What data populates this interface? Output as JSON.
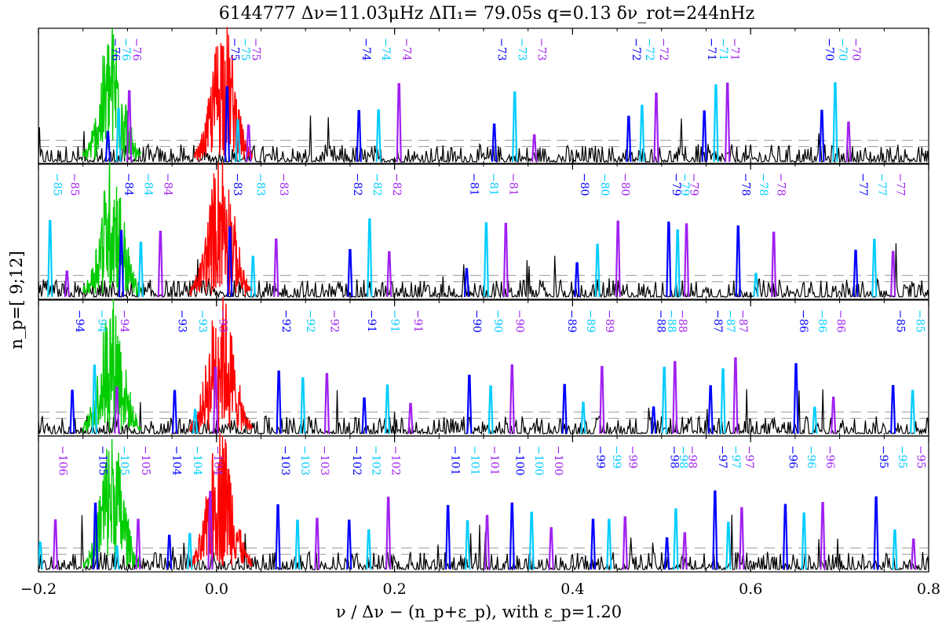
{
  "chart_data": {
    "type": "line",
    "title": "6144777 Δν=11.03μHz ΔΠ₁= 79.05s q=0.13 δν_rot=244nHz",
    "xlabel": "ν / Δν − (n_p+ε_p),  with ε_p=1.20",
    "ylabel": "n_p=[ 9;12]",
    "xlim": [
      -0.2,
      0.8
    ],
    "xticks": [
      -0.2,
      0.0,
      0.2,
      0.4,
      0.6,
      0.8
    ],
    "xtick_labels": [
      "−0.2",
      "0.0",
      "0.2",
      "0.4",
      "0.6",
      "0.8"
    ],
    "grid": false,
    "colors": {
      "spectrum": "#000000",
      "radial_mode": "#ff0000",
      "quadrupole_mode": "#00cc00",
      "m_minus": "#0000ff",
      "m_zero": "#00ccff",
      "m_plus": "#a020f0",
      "threshold": "#999999"
    },
    "panels": [
      {
        "np": 12,
        "green_band": [
          -0.15,
          -0.085
        ],
        "red_band": [
          -0.025,
          0.04
        ],
        "mixed_modes": [
          {
            "n": -76,
            "x": [
              -0.122,
              -0.11,
              -0.098
            ],
            "labels": [
              "−76",
              "−76",
              "−76"
            ]
          },
          {
            "n": -75,
            "x": [
              0.012,
              0.024,
              0.036
            ],
            "labels": [
              "−75",
              "−75",
              "−75"
            ]
          },
          {
            "n": -74,
            "x": [
              0.16,
              0.182,
              0.205
            ],
            "labels": [
              "−74",
              "−74",
              "−74"
            ]
          },
          {
            "n": -73,
            "x": [
              0.312,
              0.335,
              0.357
            ],
            "labels": [
              "−73",
              "−73",
              "−73"
            ]
          },
          {
            "n": -72,
            "x": [
              0.463,
              0.478,
              0.494
            ],
            "labels": [
              "−72",
              "−72",
              "−72"
            ]
          },
          {
            "n": -71,
            "x": [
              0.548,
              0.561,
              0.574
            ],
            "labels": [
              "−71",
              "−71",
              "−71"
            ]
          },
          {
            "n": -70,
            "x": [
              0.68,
              0.695,
              0.71
            ],
            "labels": [
              "−70",
              "−70",
              "−70"
            ]
          }
        ]
      },
      {
        "np": 11,
        "green_band": [
          -0.15,
          -0.085
        ],
        "red_band": [
          -0.03,
          0.04
        ],
        "mixed_modes": [
          {
            "n": -85,
            "x": [
              -0.205,
              -0.187,
              -0.168
            ],
            "labels": [
              "−85",
              "−85",
              "−85"
            ]
          },
          {
            "n": -84,
            "x": [
              -0.107,
              -0.085,
              -0.063
            ],
            "labels": [
              "−84",
              "−84",
              "−84"
            ]
          },
          {
            "n": -83,
            "x": [
              0.015,
              0.041,
              0.067
            ],
            "labels": [
              "−83",
              "−83",
              "−83"
            ]
          },
          {
            "n": -82,
            "x": [
              0.15,
              0.172,
              0.194
            ],
            "labels": [
              "−82",
              "−82",
              "−82"
            ]
          },
          {
            "n": -81,
            "x": [
              0.281,
              0.303,
              0.325
            ],
            "labels": [
              "−81",
              "−81",
              "−81"
            ]
          },
          {
            "n": -80,
            "x": [
              0.405,
              0.428,
              0.451
            ],
            "labels": [
              "−80",
              "−80",
              "−80"
            ]
          },
          {
            "n": -79,
            "x": [
              0.508,
              0.518,
              0.528
            ],
            "labels": [
              "−79",
              "−79",
              "−79"
            ]
          },
          {
            "n": -78,
            "x": [
              0.586,
              0.606,
              0.626
            ],
            "labels": [
              "−78",
              "−78",
              "−78"
            ]
          },
          {
            "n": -77,
            "x": [
              0.718,
              0.739,
              0.76
            ],
            "labels": [
              "−77",
              "−77",
              "−77"
            ]
          }
        ]
      },
      {
        "np": 10,
        "green_band": [
          -0.15,
          -0.085
        ],
        "red_band": [
          -0.03,
          0.04
        ],
        "mixed_modes": [
          {
            "n": -94,
            "x": [
              -0.162,
              -0.137,
              -0.112
            ],
            "labels": [
              "−94",
              "−94",
              "−94"
            ]
          },
          {
            "n": -93,
            "x": [
              -0.047,
              -0.024,
              -0.001
            ],
            "labels": [
              "−93",
              "−93",
              "−93"
            ]
          },
          {
            "n": -92,
            "x": [
              0.07,
              0.097,
              0.124
            ],
            "labels": [
              "−92",
              "−92",
              "−92"
            ]
          },
          {
            "n": -91,
            "x": [
              0.166,
              0.192,
              0.218
            ],
            "labels": [
              "−91",
              "−91",
              "−91"
            ]
          },
          {
            "n": -90,
            "x": [
              0.284,
              0.308,
              0.332
            ],
            "labels": [
              "−90",
              "−90",
              "−90"
            ]
          },
          {
            "n": -89,
            "x": [
              0.391,
              0.412,
              0.433
            ],
            "labels": [
              "−89",
              "−89",
              "−89"
            ]
          },
          {
            "n": -88,
            "x": [
              0.491,
              0.503,
              0.515
            ],
            "labels": [
              "−88",
              "−88",
              "−88"
            ]
          },
          {
            "n": -87,
            "x": [
              0.555,
              0.569,
              0.583
            ],
            "labels": [
              "−87",
              "−87",
              "−87"
            ]
          },
          {
            "n": -86,
            "x": [
              0.651,
              0.672,
              0.693
            ],
            "labels": [
              "−86",
              "−86",
              "−86"
            ]
          },
          {
            "n": -85,
            "x": [
              0.76,
              0.782,
              0.804
            ],
            "labels": [
              "−85",
              "−85",
              "−85"
            ]
          }
        ]
      },
      {
        "np": 9,
        "green_band": [
          -0.15,
          -0.085
        ],
        "red_band": [
          -0.03,
          0.04
        ],
        "mixed_modes": [
          {
            "n": -106,
            "x": [
              -0.215,
              -0.198,
              -0.181
            ],
            "labels": [
              "−106",
              "−106",
              "−106"
            ]
          },
          {
            "n": -105,
            "x": [
              -0.136,
              -0.112,
              -0.088
            ],
            "labels": [
              "−105",
              "−105",
              "−105"
            ]
          },
          {
            "n": -104,
            "x": [
              -0.053,
              -0.03,
              -0.007
            ],
            "labels": [
              "−104",
              "−104",
              "−104"
            ]
          },
          {
            "n": -103,
            "x": [
              0.069,
              0.091,
              0.113
            ],
            "labels": [
              "−103",
              "−103",
              "−103"
            ]
          },
          {
            "n": -102,
            "x": [
              0.149,
              0.171,
              0.193
            ],
            "labels": [
              "−102",
              "−102",
              "−102"
            ]
          },
          {
            "n": -101,
            "x": [
              0.26,
              0.282,
              0.304
            ],
            "labels": [
              "−101",
              "−101",
              "−101"
            ]
          },
          {
            "n": -100,
            "x": [
              0.332,
              0.354,
              0.376
            ],
            "labels": [
              "−100",
              "−100",
              "−100"
            ]
          },
          {
            "n": -99,
            "x": [
              0.423,
              0.441,
              0.459
            ],
            "labels": [
              "−99",
              "−99",
              "−99"
            ]
          },
          {
            "n": -98,
            "x": [
              0.506,
              0.516,
              0.526
            ],
            "labels": [
              "−98",
              "−98",
              "−98"
            ]
          },
          {
            "n": -97,
            "x": [
              0.56,
              0.575,
              0.59
            ],
            "labels": [
              "−97",
              "−97",
              "−97"
            ]
          },
          {
            "n": -96,
            "x": [
              0.639,
              0.66,
              0.681
            ],
            "labels": [
              "−96",
              "−96",
              "−96"
            ]
          },
          {
            "n": -95,
            "x": [
              0.741,
              0.762,
              0.783
            ],
            "labels": [
              "−95",
              "−95",
              "−95"
            ]
          }
        ]
      }
    ]
  }
}
